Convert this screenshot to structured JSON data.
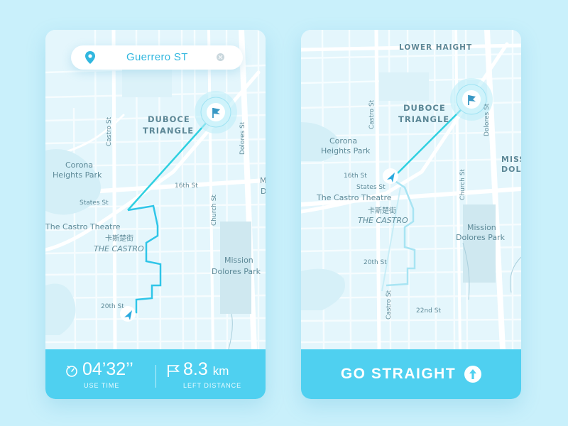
{
  "left_screen": {
    "search": {
      "value": "Guerrero ST",
      "pin_icon": "location-pin-icon",
      "clear_icon": "clear-icon"
    },
    "map_labels": {
      "duboce_1": "DUBOCE",
      "duboce_2": "TRIANGLE",
      "corona_1": "Corona",
      "corona_2": "Heights Park",
      "castro_theatre": "The Castro Theatre",
      "castro_cn": "卡斯楚街",
      "castro": "THE CASTRO",
      "mission_1": "Mission",
      "mission_2": "Dolores Park",
      "st_16th": "16th St",
      "st_20th": "20th St",
      "states_st": "States St",
      "castro_st": "Castro St",
      "church_st": "Church St",
      "dolores_st": "Dolores St",
      "edge_m": "M",
      "edge_d": "D"
    },
    "stats": {
      "time_value": "04’32’’",
      "time_caption": "USE TIME",
      "distance_value": "8.3",
      "distance_unit": "km",
      "distance_caption": "LEFT DISTANCE",
      "timer_icon": "timer-icon",
      "flag_icon": "flag-icon"
    }
  },
  "right_screen": {
    "map_labels": {
      "lower_haight": "LOWER HAIGHT",
      "duboce_1": "DUBOCE",
      "duboce_2": "TRIANGLE",
      "corona_1": "Corona",
      "corona_2": "Heights Park",
      "castro_theatre": "The Castro Theatre",
      "castro_cn": "卡斯楚街",
      "castro": "THE CASTRO",
      "mission_1": "Mission",
      "mission_2": "Dolores Park",
      "missio_1": "MISSIO",
      "missio_2": "DOLO",
      "st_16th": "16th St",
      "st_20th": "20th St",
      "st_22nd": "22nd St",
      "states_st": "States St",
      "castro_st": "Castro St",
      "church_st": "Church St",
      "dolores_st": "Dolores St"
    },
    "instruction": {
      "label": "GO STRAIGHT",
      "icon": "arrow-up-icon"
    }
  },
  "colors": {
    "accent": "#4fd0f0",
    "route_active": "#2fc5e8",
    "route_done": "#a8e4f3",
    "map_bg": "#e6f8fd",
    "page_bg": "#c9f0fb"
  }
}
